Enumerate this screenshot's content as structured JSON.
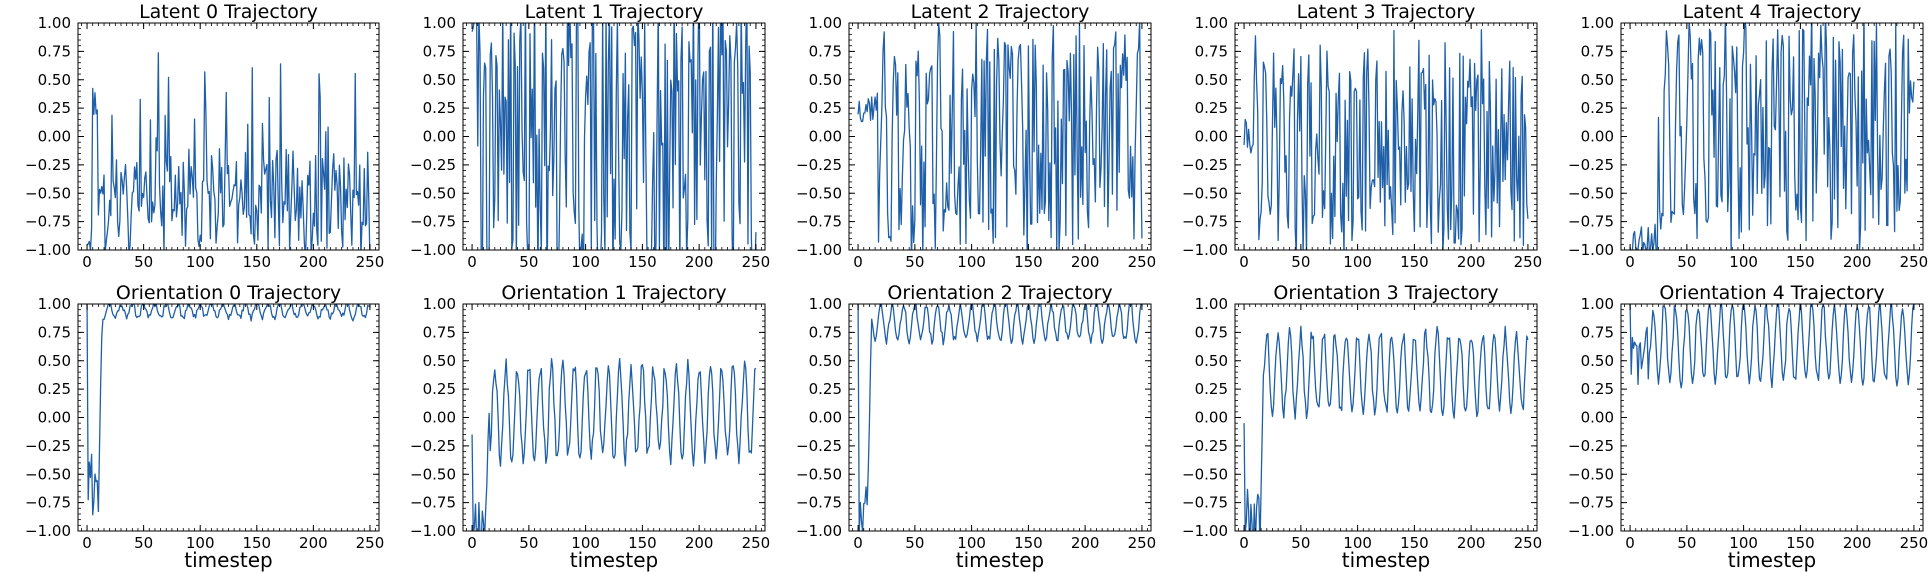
{
  "colors": {
    "series": "#1f5fa8"
  },
  "chart_data": [
    {
      "type": "line",
      "title": "Latent 0 Trajectory",
      "xlabel": "",
      "ylabel": "",
      "xlim": [
        -8,
        258
      ],
      "ylim": [
        -1,
        1
      ],
      "xticks": [
        0,
        50,
        100,
        150,
        200,
        250
      ],
      "yticks": [
        -1.0,
        -0.75,
        -0.5,
        -0.25,
        0.0,
        0.25,
        0.5,
        0.75,
        1.0
      ],
      "ytick_labels": [
        "−1.00",
        "−0.75",
        "−0.50",
        "−0.25",
        "0.00",
        "0.25",
        "0.50",
        "0.75",
        "1.00"
      ],
      "series": [
        {
          "name": "Latent 0",
          "kind": "latent",
          "seed": 11,
          "start": -0.88,
          "transient": 10,
          "center": -0.6,
          "amp": 0.35,
          "period": 10,
          "noise": 0.22,
          "spike": 1.2
        }
      ]
    },
    {
      "type": "line",
      "title": "Latent 1 Trajectory",
      "xlabel": "",
      "ylabel": "",
      "xlim": [
        -8,
        258
      ],
      "ylim": [
        -1,
        1
      ],
      "xticks": [
        0,
        50,
        100,
        150,
        200,
        250
      ],
      "yticks": [
        -1.0,
        -0.75,
        -0.5,
        -0.25,
        0.0,
        0.25,
        0.5,
        0.75,
        1.0
      ],
      "ytick_labels": [
        "−1.00",
        "−0.75",
        "−0.50",
        "−0.25",
        "0.00",
        "0.25",
        "0.50",
        "0.75",
        "1.00"
      ],
      "series": [
        {
          "name": "Latent 1",
          "kind": "latent",
          "seed": 23,
          "start": 1.0,
          "transient": 5,
          "center": 0.0,
          "amp": 1.3,
          "period": 5,
          "noise": 0.35,
          "spike": 0
        }
      ]
    },
    {
      "type": "line",
      "title": "Latent 2 Trajectory",
      "xlabel": "",
      "ylabel": "",
      "xlim": [
        -8,
        258
      ],
      "ylim": [
        -1,
        1
      ],
      "xticks": [
        0,
        50,
        100,
        150,
        200,
        250
      ],
      "yticks": [
        -1.0,
        -0.75,
        -0.5,
        -0.25,
        0.0,
        0.25,
        0.5,
        0.75,
        1.0
      ],
      "ytick_labels": [
        "−1.00",
        "−0.75",
        "−0.50",
        "−0.25",
        "0.00",
        "0.25",
        "0.50",
        "0.75",
        "1.00"
      ],
      "series": [
        {
          "name": "Latent 2",
          "kind": "latent",
          "seed": 37,
          "start": 0.27,
          "transient": 18,
          "center": -0.05,
          "amp": 1.0,
          "period": 10,
          "noise": 0.12,
          "spike": 0
        }
      ]
    },
    {
      "type": "line",
      "title": "Latent 3 Trajectory",
      "xlabel": "",
      "ylabel": "",
      "xlim": [
        -8,
        258
      ],
      "ylim": [
        -1,
        1
      ],
      "xticks": [
        0,
        50,
        100,
        150,
        200,
        250
      ],
      "yticks": [
        -1.0,
        -0.75,
        -0.5,
        -0.25,
        0.0,
        0.25,
        0.5,
        0.75,
        1.0
      ],
      "ytick_labels": [
        "−1.00",
        "−0.75",
        "−0.50",
        "−0.25",
        "0.00",
        "0.25",
        "0.50",
        "0.75",
        "1.00"
      ],
      "series": [
        {
          "name": "Latent 3",
          "kind": "latent",
          "seed": 41,
          "start": 0.0,
          "transient": 8,
          "center": -0.1,
          "amp": 0.95,
          "period": 8,
          "noise": 0.15,
          "spike": 0
        }
      ]
    },
    {
      "type": "line",
      "title": "Latent 4 Trajectory",
      "xlabel": "",
      "ylabel": "",
      "xlim": [
        -8,
        258
      ],
      "ylim": [
        -1,
        1
      ],
      "xticks": [
        0,
        50,
        100,
        150,
        200,
        250
      ],
      "yticks": [
        -1.0,
        -0.75,
        -0.5,
        -0.25,
        0.0,
        0.25,
        0.5,
        0.75,
        1.0
      ],
      "ytick_labels": [
        "−1.00",
        "−0.75",
        "−0.50",
        "−0.25",
        "0.00",
        "0.25",
        "0.50",
        "0.75",
        "1.00"
      ],
      "series": [
        {
          "name": "Latent 4",
          "kind": "latent",
          "seed": 53,
          "start": -0.9,
          "transient": 25,
          "center": 0.05,
          "amp": 1.05,
          "period": 10,
          "noise": 0.1,
          "spike": 0
        }
      ]
    },
    {
      "type": "line",
      "title": "Orientation 0 Trajectory",
      "xlabel": "timestep",
      "ylabel": "",
      "xlim": [
        -8,
        258
      ],
      "ylim": [
        -1,
        1
      ],
      "xticks": [
        0,
        50,
        100,
        150,
        200,
        250
      ],
      "yticks": [
        -1.0,
        -0.75,
        -0.5,
        -0.25,
        0.0,
        0.25,
        0.5,
        0.75,
        1.0
      ],
      "ytick_labels": [
        "−1.00",
        "−0.75",
        "−0.50",
        "−0.25",
        "0.00",
        "0.25",
        "0.50",
        "0.75",
        "1.00"
      ],
      "series": [
        {
          "name": "Orientation 0",
          "kind": "orient",
          "seed": 61,
          "start": 1.0,
          "dip": -0.7,
          "transient": 14,
          "hi": 1.0,
          "lo": 0.88,
          "period": 10,
          "noise": 0.03
        }
      ]
    },
    {
      "type": "line",
      "title": "Orientation 1 Trajectory",
      "xlabel": "timestep",
      "ylabel": "",
      "xlim": [
        -8,
        258
      ],
      "ylim": [
        -1,
        1
      ],
      "xticks": [
        0,
        50,
        100,
        150,
        200,
        250
      ],
      "yticks": [
        -1.0,
        -0.75,
        -0.5,
        -0.25,
        0.0,
        0.25,
        0.5,
        0.75,
        1.0
      ],
      "ytick_labels": [
        "−1.00",
        "−0.75",
        "−0.50",
        "−0.25",
        "0.00",
        "0.25",
        "0.50",
        "0.75",
        "1.00"
      ],
      "series": [
        {
          "name": "Orientation 1",
          "kind": "orient",
          "seed": 67,
          "start": -0.15,
          "dip": -1.0,
          "transient": 16,
          "hi": 0.45,
          "lo": -0.35,
          "period": 10,
          "noise": 0.08
        }
      ]
    },
    {
      "type": "line",
      "title": "Orientation 2 Trajectory",
      "xlabel": "timestep",
      "ylabel": "",
      "xlim": [
        -8,
        258
      ],
      "ylim": [
        -1,
        1
      ],
      "xticks": [
        0,
        50,
        100,
        150,
        200,
        250
      ],
      "yticks": [
        -1.0,
        -0.75,
        -0.5,
        -0.25,
        0.0,
        0.25,
        0.5,
        0.75,
        1.0
      ],
      "ytick_labels": [
        "−1.00",
        "−0.75",
        "−0.50",
        "−0.25",
        "0.00",
        "0.25",
        "0.50",
        "0.75",
        "1.00"
      ],
      "series": [
        {
          "name": "Orientation 2",
          "kind": "orient",
          "seed": 71,
          "start": 1.0,
          "dip": -1.0,
          "transient": 12,
          "hi": 1.0,
          "lo": 0.68,
          "period": 10,
          "noise": 0.04
        }
      ]
    },
    {
      "type": "line",
      "title": "Orientation 3 Trajectory",
      "xlabel": "timestep",
      "ylabel": "",
      "xlim": [
        -8,
        258
      ],
      "ylim": [
        -1,
        1
      ],
      "xticks": [
        0,
        50,
        100,
        150,
        200,
        250
      ],
      "yticks": [
        -1.0,
        -0.75,
        -0.5,
        -0.25,
        0.0,
        0.25,
        0.5,
        0.75,
        1.0
      ],
      "ytick_labels": [
        "−1.00",
        "−0.75",
        "−0.50",
        "−0.25",
        "0.00",
        "0.25",
        "0.50",
        "0.75",
        "1.00"
      ],
      "series": [
        {
          "name": "Orientation 3",
          "kind": "orient",
          "seed": 79,
          "start": -0.05,
          "dip": -1.0,
          "transient": 18,
          "hi": 0.75,
          "lo": 0.05,
          "period": 10,
          "noise": 0.07
        }
      ]
    },
    {
      "type": "line",
      "title": "Orientation 4 Trajectory",
      "xlabel": "timestep",
      "ylabel": "",
      "xlim": [
        -8,
        258
      ],
      "ylim": [
        -1,
        1
      ],
      "xticks": [
        0,
        50,
        100,
        150,
        200,
        250
      ],
      "yticks": [
        -1.0,
        -0.75,
        -0.5,
        -0.25,
        0.0,
        0.25,
        0.5,
        0.75,
        1.0
      ],
      "ytick_labels": [
        "−1.00",
        "−0.75",
        "−0.50",
        "−0.25",
        "0.00",
        "0.25",
        "0.50",
        "0.75",
        "1.00"
      ],
      "series": [
        {
          "name": "Orientation 4",
          "kind": "orient",
          "seed": 83,
          "start": 1.0,
          "dip": 0.4,
          "transient": 20,
          "hi": 1.0,
          "lo": 0.32,
          "period": 10,
          "noise": 0.06
        }
      ]
    }
  ]
}
